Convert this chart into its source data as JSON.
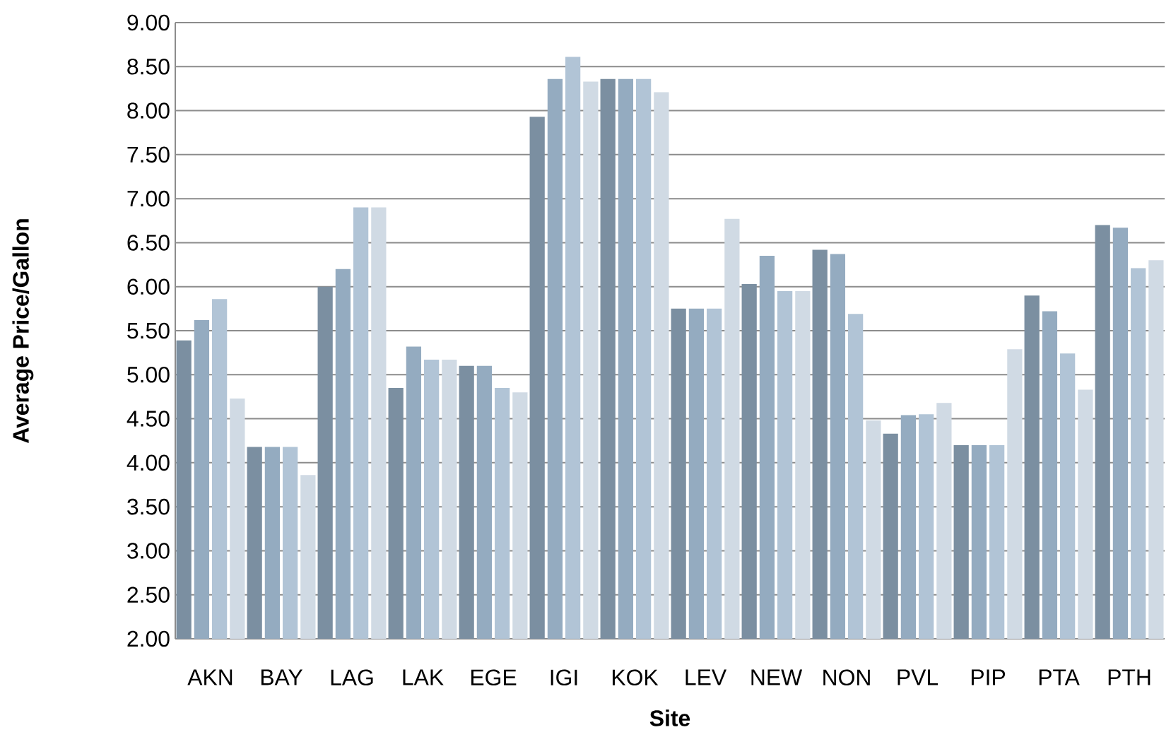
{
  "chart_data": {
    "type": "bar",
    "xlabel": "Site",
    "ylabel": "Average Price/Gallon",
    "categories": [
      "AKN",
      "BAY",
      "LAG",
      "LAK",
      "EGE",
      "IGI",
      "KOK",
      "LEV",
      "NEW",
      "NON",
      "PVL",
      "PIP",
      "PTA",
      "PTH"
    ],
    "series": [
      {
        "color": "#7b8fa1",
        "values": [
          5.39,
          4.18,
          6.0,
          4.85,
          5.1,
          7.93,
          8.36,
          5.75,
          6.03,
          6.42,
          4.33,
          4.2,
          5.9,
          6.7
        ]
      },
      {
        "color": "#94abc0",
        "values": [
          5.62,
          4.18,
          6.2,
          5.32,
          5.1,
          8.36,
          8.36,
          5.75,
          6.35,
          6.37,
          4.54,
          4.2,
          5.72,
          6.67
        ]
      },
      {
        "color": "#b1c4d6",
        "values": [
          5.86,
          4.18,
          6.9,
          5.17,
          4.85,
          8.61,
          8.36,
          5.75,
          5.95,
          5.69,
          4.55,
          4.2,
          5.24,
          6.21
        ]
      },
      {
        "color": "#d0dae4",
        "values": [
          4.73,
          3.86,
          6.9,
          5.17,
          4.8,
          8.33,
          8.21,
          6.77,
          5.95,
          4.48,
          4.68,
          5.29,
          4.83,
          6.3
        ]
      }
    ],
    "ylim": [
      2,
      9
    ],
    "yticks": [
      {
        "value": 2,
        "label": "2.00"
      },
      {
        "value": 2.5,
        "label": "2.50"
      },
      {
        "value": 3,
        "label": "3.00"
      },
      {
        "value": 3.5,
        "label": "3.50"
      },
      {
        "value": 4,
        "label": "4.00"
      },
      {
        "value": 4.5,
        "label": "4.50"
      },
      {
        "value": 5,
        "label": "5.00"
      },
      {
        "value": 5.5,
        "label": "5.50"
      },
      {
        "value": 6,
        "label": "6.00"
      },
      {
        "value": 6.5,
        "label": "6.50"
      },
      {
        "value": 7,
        "label": "7.00"
      },
      {
        "value": 7.5,
        "label": "7.50"
      },
      {
        "value": 8,
        "label": "8.00"
      },
      {
        "value": 8.5,
        "label": "8.50"
      },
      {
        "value": 9,
        "label": "9.00"
      }
    ],
    "grid": "y"
  }
}
